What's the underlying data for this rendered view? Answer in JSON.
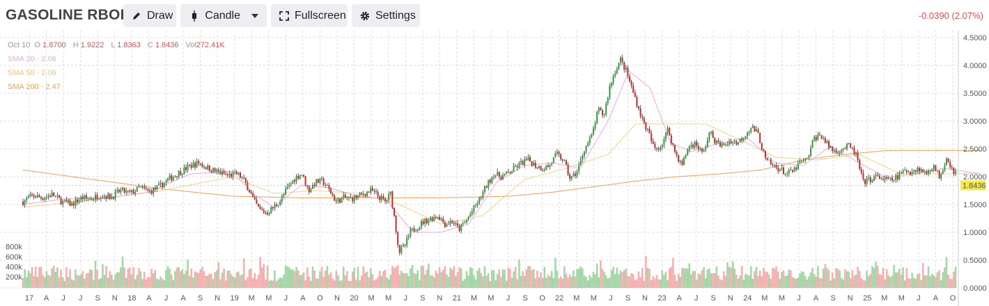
{
  "header": {
    "title": "GASOLINE RBOB",
    "draw_label": "Draw",
    "candle_label": "Candle",
    "fullscreen_label": "Fullscreen",
    "settings_label": "Settings",
    "change": "-0.0390 (2.07%)"
  },
  "legend": {
    "date": "Oct 10",
    "open_key": "O",
    "open": "1.8700",
    "high_key": "H",
    "high": "1.9222",
    "low_key": "L",
    "low": "1.8363",
    "close_key": "C",
    "close": "1.8436",
    "vol_key": "Vol",
    "vol": "272.41K",
    "sma20": "SMA 20 · 2.06",
    "sma50": "SMA 50 · 2.06",
    "sma200": "SMA 200 · 2.47"
  },
  "colors": {
    "up": "#2e9e3e",
    "down": "#c62828",
    "vol_up": "#a5d6a7",
    "vol_down": "#f5b0b0",
    "sma20": "#f0a8d8",
    "sma50": "#f5d48a",
    "sma200": "#f0a050",
    "grid": "#dddddd",
    "last_price_bg": "#f5e84a"
  },
  "chart_data": {
    "type": "candlestick",
    "y_ticks": [
      "0.0000",
      "0.5000",
      "1.0000",
      "1.5000",
      "2.0000",
      "2.5000",
      "3.0000",
      "3.5000",
      "4.0000",
      "4.5000"
    ],
    "ylim": [
      0,
      4.5
    ],
    "volume_ticks": [
      "200k",
      "400k",
      "600k",
      "800k"
    ],
    "x_ticks": [
      "17",
      "A",
      "J",
      "J",
      "S",
      "N",
      "18",
      "A",
      "J",
      "A",
      "S",
      "N",
      "19",
      "M",
      "M",
      "J",
      "A",
      "O",
      "N",
      "20",
      "M",
      "M",
      "J",
      "S",
      "N",
      "21",
      "M",
      "M",
      "J",
      "S",
      "O",
      "22",
      "M",
      "M",
      "J",
      "S",
      "N",
      "23",
      "A",
      "J",
      "S",
      "N",
      "24",
      "M",
      "M",
      "J",
      "A",
      "S",
      "N",
      "25",
      "M",
      "M",
      "J",
      "A",
      "O"
    ],
    "last_price": "1.8436",
    "close_series": [
      [
        0,
        1.55
      ],
      [
        14,
        1.66
      ],
      [
        28,
        1.62
      ],
      [
        42,
        1.68
      ],
      [
        56,
        1.55
      ],
      [
        70,
        1.5
      ],
      [
        84,
        1.62
      ],
      [
        98,
        1.6
      ],
      [
        112,
        1.68
      ],
      [
        126,
        1.63
      ],
      [
        140,
        1.75
      ],
      [
        154,
        1.7
      ],
      [
        168,
        1.8
      ],
      [
        182,
        1.73
      ],
      [
        196,
        1.82
      ],
      [
        210,
        1.96
      ],
      [
        224,
        2.07
      ],
      [
        238,
        2.18
      ],
      [
        252,
        2.25
      ],
      [
        266,
        2.15
      ],
      [
        280,
        2.08
      ],
      [
        294,
        2.02
      ],
      [
        308,
        2.05
      ],
      [
        316,
        1.95
      ],
      [
        324,
        1.78
      ],
      [
        332,
        1.55
      ],
      [
        340,
        1.4
      ],
      [
        350,
        1.35
      ],
      [
        360,
        1.45
      ],
      [
        370,
        1.58
      ],
      [
        380,
        1.8
      ],
      [
        390,
        1.97
      ],
      [
        400,
        2.06
      ],
      [
        410,
        1.75
      ],
      [
        420,
        1.9
      ],
      [
        430,
        1.92
      ],
      [
        440,
        1.75
      ],
      [
        450,
        1.55
      ],
      [
        460,
        1.62
      ],
      [
        470,
        1.6
      ],
      [
        480,
        1.64
      ],
      [
        490,
        1.7
      ],
      [
        500,
        1.75
      ],
      [
        510,
        1.65
      ],
      [
        520,
        1.55
      ],
      [
        528,
        1.7
      ],
      [
        534,
        1.2
      ],
      [
        540,
        0.65
      ],
      [
        548,
        0.75
      ],
      [
        556,
        1.0
      ],
      [
        566,
        1.1
      ],
      [
        576,
        1.2
      ],
      [
        586,
        1.25
      ],
      [
        596,
        1.3
      ],
      [
        606,
        1.15
      ],
      [
        616,
        1.2
      ],
      [
        626,
        1.05
      ],
      [
        636,
        1.2
      ],
      [
        646,
        1.4
      ],
      [
        656,
        1.6
      ],
      [
        666,
        1.85
      ],
      [
        676,
        2.05
      ],
      [
        686,
        2.0
      ],
      [
        696,
        2.05
      ],
      [
        706,
        2.15
      ],
      [
        716,
        2.25
      ],
      [
        726,
        2.3
      ],
      [
        736,
        2.2
      ],
      [
        746,
        2.15
      ],
      [
        756,
        2.2
      ],
      [
        766,
        2.4
      ],
      [
        776,
        2.3
      ],
      [
        786,
        1.95
      ],
      [
        796,
        2.1
      ],
      [
        806,
        2.5
      ],
      [
        816,
        2.7
      ],
      [
        826,
        3.2
      ],
      [
        834,
        3.1
      ],
      [
        842,
        3.6
      ],
      [
        850,
        3.9
      ],
      [
        858,
        4.1
      ],
      [
        866,
        3.9
      ],
      [
        874,
        3.6
      ],
      [
        882,
        3.3
      ],
      [
        890,
        3.0
      ],
      [
        898,
        2.8
      ],
      [
        906,
        2.5
      ],
      [
        916,
        2.55
      ],
      [
        926,
        2.85
      ],
      [
        936,
        2.45
      ],
      [
        946,
        2.2
      ],
      [
        956,
        2.55
      ],
      [
        966,
        2.6
      ],
      [
        976,
        2.4
      ],
      [
        986,
        2.8
      ],
      [
        996,
        2.6
      ],
      [
        1006,
        2.55
      ],
      [
        1016,
        2.65
      ],
      [
        1026,
        2.6
      ],
      [
        1036,
        2.75
      ],
      [
        1046,
        2.9
      ],
      [
        1056,
        2.75
      ],
      [
        1066,
        2.3
      ],
      [
        1076,
        2.2
      ],
      [
        1086,
        2.15
      ],
      [
        1096,
        2.05
      ],
      [
        1106,
        2.1
      ],
      [
        1116,
        2.25
      ],
      [
        1126,
        2.3
      ],
      [
        1136,
        2.7
      ],
      [
        1146,
        2.75
      ],
      [
        1156,
        2.55
      ],
      [
        1166,
        2.45
      ],
      [
        1176,
        2.5
      ],
      [
        1186,
        2.55
      ],
      [
        1196,
        2.4
      ],
      [
        1206,
        1.9
      ],
      [
        1216,
        1.95
      ],
      [
        1226,
        2.0
      ],
      [
        1236,
        1.95
      ],
      [
        1246,
        1.93
      ],
      [
        1256,
        2.0
      ],
      [
        1266,
        2.1
      ],
      [
        1276,
        2.1
      ],
      [
        1286,
        2.15
      ],
      [
        1296,
        2.05
      ],
      [
        1306,
        2.2
      ],
      [
        1316,
        2.0
      ],
      [
        1326,
        2.35
      ],
      [
        1336,
        2.1
      ],
      [
        1346,
        2.05
      ],
      [
        1356,
        2.0
      ],
      [
        1366,
        1.85
      ],
      [
        1374,
        1.84
      ]
    ],
    "sma20_series": [
      [
        0,
        1.5
      ],
      [
        60,
        1.6
      ],
      [
        120,
        1.62
      ],
      [
        180,
        1.72
      ],
      [
        240,
        2.05
      ],
      [
        300,
        2.1
      ],
      [
        330,
        1.7
      ],
      [
        360,
        1.45
      ],
      [
        400,
        1.85
      ],
      [
        440,
        1.8
      ],
      [
        480,
        1.65
      ],
      [
        520,
        1.6
      ],
      [
        560,
        1.0
      ],
      [
        600,
        1.0
      ],
      [
        640,
        1.15
      ],
      [
        680,
        1.9
      ],
      [
        720,
        2.2
      ],
      [
        760,
        2.25
      ],
      [
        800,
        2.15
      ],
      [
        840,
        3.0
      ],
      [
        870,
        3.9
      ],
      [
        900,
        3.6
      ],
      [
        930,
        2.6
      ],
      [
        960,
        2.45
      ],
      [
        1000,
        2.6
      ],
      [
        1040,
        2.7
      ],
      [
        1080,
        2.25
      ],
      [
        1120,
        2.2
      ],
      [
        1160,
        2.55
      ],
      [
        1200,
        2.25
      ],
      [
        1240,
        1.98
      ],
      [
        1280,
        2.05
      ],
      [
        1320,
        2.15
      ],
      [
        1374,
        2.06
      ]
    ],
    "sma50_series": [
      [
        0,
        1.45
      ],
      [
        100,
        1.58
      ],
      [
        200,
        1.75
      ],
      [
        300,
        2.0
      ],
      [
        360,
        1.7
      ],
      [
        420,
        1.75
      ],
      [
        480,
        1.7
      ],
      [
        540,
        1.5
      ],
      [
        600,
        1.15
      ],
      [
        660,
        1.3
      ],
      [
        720,
        1.95
      ],
      [
        780,
        2.15
      ],
      [
        840,
        2.4
      ],
      [
        880,
        2.95
      ],
      [
        920,
        2.95
      ],
      [
        980,
        2.95
      ],
      [
        1040,
        2.6
      ],
      [
        1080,
        2.35
      ],
      [
        1140,
        2.3
      ],
      [
        1200,
        2.4
      ],
      [
        1260,
        2.05
      ],
      [
        1320,
        2.05
      ],
      [
        1374,
        2.06
      ]
    ],
    "sma200_series": [
      [
        0,
        2.12
      ],
      [
        100,
        1.95
      ],
      [
        200,
        1.78
      ],
      [
        300,
        1.65
      ],
      [
        400,
        1.62
      ],
      [
        500,
        1.62
      ],
      [
        600,
        1.62
      ],
      [
        700,
        1.65
      ],
      [
        760,
        1.72
      ],
      [
        820,
        1.82
      ],
      [
        880,
        1.92
      ],
      [
        940,
        2.0
      ],
      [
        1000,
        2.05
      ],
      [
        1060,
        2.12
      ],
      [
        1120,
        2.3
      ],
      [
        1180,
        2.4
      ],
      [
        1240,
        2.47
      ],
      [
        1300,
        2.47
      ],
      [
        1374,
        2.47
      ]
    ]
  }
}
